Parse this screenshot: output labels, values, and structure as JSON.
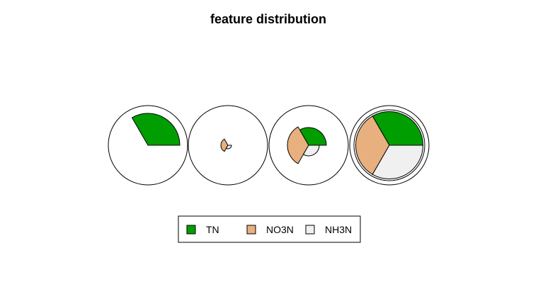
{
  "chart_data": {
    "type": "star",
    "title": "feature distribution",
    "features": [
      "TN",
      "NO3N",
      "NH3N"
    ],
    "colors": {
      "TN": "#009E00",
      "NO3N": "#E8B07E",
      "NH3N": "#F0F0F0"
    },
    "observations": [
      {
        "values": {
          "TN": 0.9,
          "NO3N": 0.0,
          "NH3N": 0.0
        }
      },
      {
        "values": {
          "TN": 0.0,
          "NO3N": 0.2,
          "NH3N": 0.1
        }
      },
      {
        "values": {
          "TN": 0.5,
          "NO3N": 0.6,
          "NH3N": 0.3
        }
      },
      {
        "values": {
          "TN": 0.95,
          "NO3N": 0.95,
          "NH3N": 0.95
        }
      }
    ],
    "legend": {
      "position": "bottom",
      "entries": [
        "TN",
        "NO3N",
        "NH3N"
      ]
    }
  }
}
